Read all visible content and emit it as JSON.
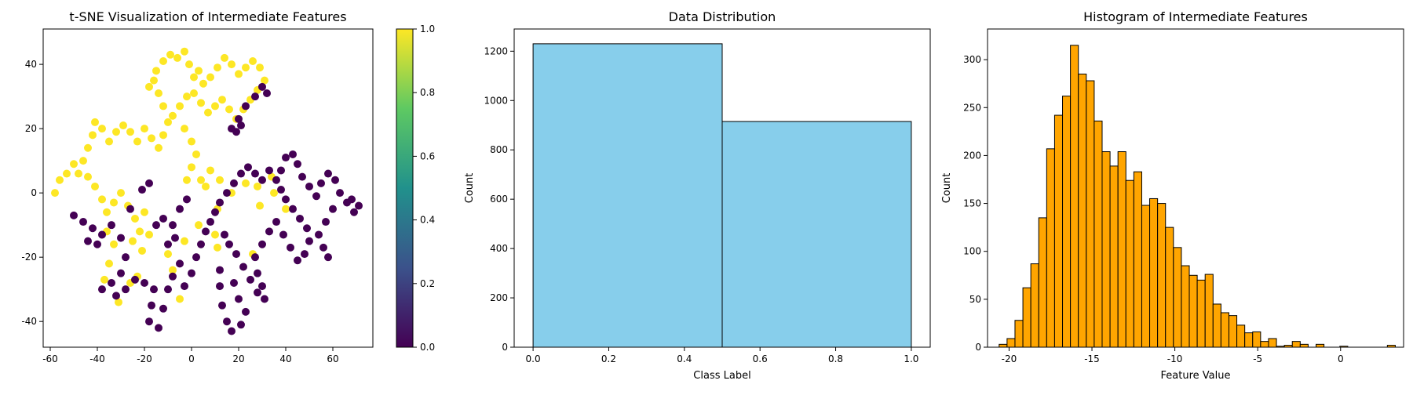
{
  "chart_data": [
    {
      "type": "scatter",
      "title": "t-SNE Visualization of Intermediate Features",
      "xlabel": "",
      "ylabel": "",
      "xlim": [
        -63,
        77
      ],
      "ylim": [
        -48,
        51
      ],
      "xticks": [
        "-60",
        "-40",
        "-20",
        "0",
        "20",
        "40",
        "60"
      ],
      "yticks": [
        "-40",
        "-20",
        "0",
        "20",
        "40"
      ],
      "colormap": "viridis",
      "colorbar": {
        "min": 0.0,
        "max": 1.0,
        "ticks": [
          "0.0",
          "0.2",
          "0.4",
          "0.6",
          "0.8",
          "1.0"
        ]
      },
      "class_colors": {
        "0": "#440154",
        "1": "#fde725"
      },
      "series": [
        {
          "label_value": 1,
          "points": [
            [
              -58,
              0
            ],
            [
              -56,
              4
            ],
            [
              -53,
              6
            ],
            [
              -50,
              9
            ],
            [
              -48,
              6
            ],
            [
              -46,
              10
            ],
            [
              -44,
              14
            ],
            [
              -42,
              18
            ],
            [
              -41,
              22
            ],
            [
              -38,
              20
            ],
            [
              -35,
              16
            ],
            [
              -32,
              19
            ],
            [
              -29,
              21
            ],
            [
              -26,
              19
            ],
            [
              -23,
              16
            ],
            [
              -20,
              20
            ],
            [
              -17,
              17
            ],
            [
              -14,
              14
            ],
            [
              -12,
              18
            ],
            [
              -10,
              22
            ],
            [
              -12,
              27
            ],
            [
              -14,
              31
            ],
            [
              -16,
              35
            ],
            [
              -18,
              33
            ],
            [
              -15,
              38
            ],
            [
              -12,
              41
            ],
            [
              -9,
              43
            ],
            [
              -6,
              42
            ],
            [
              -3,
              44
            ],
            [
              -1,
              40
            ],
            [
              1,
              36
            ],
            [
              3,
              38
            ],
            [
              5,
              34
            ],
            [
              8,
              36
            ],
            [
              11,
              39
            ],
            [
              14,
              42
            ],
            [
              17,
              40
            ],
            [
              20,
              37
            ],
            [
              23,
              39
            ],
            [
              26,
              41
            ],
            [
              29,
              39
            ],
            [
              31,
              35
            ],
            [
              28,
              32
            ],
            [
              25,
              29
            ],
            [
              22,
              26
            ],
            [
              19,
              23
            ],
            [
              16,
              26
            ],
            [
              13,
              29
            ],
            [
              10,
              27
            ],
            [
              7,
              25
            ],
            [
              4,
              28
            ],
            [
              1,
              31
            ],
            [
              -2,
              30
            ],
            [
              -5,
              27
            ],
            [
              -8,
              24
            ],
            [
              -3,
              20
            ],
            [
              0,
              16
            ],
            [
              2,
              12
            ],
            [
              0,
              8
            ],
            [
              -2,
              4
            ],
            [
              -44,
              5
            ],
            [
              -41,
              2
            ],
            [
              -38,
              -2
            ],
            [
              -36,
              -6
            ],
            [
              -33,
              -3
            ],
            [
              -30,
              0
            ],
            [
              -27,
              -4
            ],
            [
              -24,
              -8
            ],
            [
              -22,
              -12
            ],
            [
              -25,
              -15
            ],
            [
              -21,
              -18
            ],
            [
              -18,
              -13
            ],
            [
              -20,
              -6
            ],
            [
              -36,
              -12
            ],
            [
              -33,
              -16
            ],
            [
              -35,
              -22
            ],
            [
              -37,
              -27
            ],
            [
              -31,
              -34
            ],
            [
              -26,
              -28
            ],
            [
              -23,
              -26
            ],
            [
              -10,
              -19
            ],
            [
              -8,
              -24
            ],
            [
              -5,
              -33
            ],
            [
              10,
              -13
            ],
            [
              11,
              -17
            ],
            [
              26,
              -19
            ],
            [
              11,
              -5
            ],
            [
              3,
              -10
            ],
            [
              -3,
              -15
            ],
            [
              6,
              2
            ],
            [
              12,
              4
            ],
            [
              17,
              0
            ],
            [
              23,
              3
            ],
            [
              28,
              2
            ],
            [
              34,
              5
            ],
            [
              35,
              0
            ],
            [
              40,
              -5
            ],
            [
              29,
              -4
            ],
            [
              4,
              4
            ],
            [
              8,
              7
            ]
          ]
        },
        {
          "label_value": 0,
          "points": [
            [
              -50,
              -7
            ],
            [
              -46,
              -9
            ],
            [
              -42,
              -11
            ],
            [
              -38,
              -13
            ],
            [
              -34,
              -10
            ],
            [
              -30,
              -14
            ],
            [
              -28,
              -20
            ],
            [
              -30,
              -25
            ],
            [
              -34,
              -28
            ],
            [
              -38,
              -30
            ],
            [
              -32,
              -32
            ],
            [
              -28,
              -30
            ],
            [
              -24,
              -27
            ],
            [
              -20,
              -28
            ],
            [
              -16,
              -30
            ],
            [
              -17,
              -35
            ],
            [
              -18,
              -40
            ],
            [
              -14,
              -42
            ],
            [
              -12,
              -36
            ],
            [
              -10,
              -30
            ],
            [
              -8,
              -26
            ],
            [
              -5,
              -22
            ],
            [
              -3,
              -29
            ],
            [
              0,
              -25
            ],
            [
              2,
              -20
            ],
            [
              4,
              -16
            ],
            [
              6,
              -12
            ],
            [
              8,
              -9
            ],
            [
              10,
              -6
            ],
            [
              12,
              -3
            ],
            [
              15,
              0
            ],
            [
              18,
              3
            ],
            [
              21,
              6
            ],
            [
              24,
              8
            ],
            [
              27,
              6
            ],
            [
              30,
              4
            ],
            [
              33,
              7
            ],
            [
              36,
              4
            ],
            [
              38,
              1
            ],
            [
              40,
              -2
            ],
            [
              43,
              -5
            ],
            [
              46,
              -8
            ],
            [
              49,
              -11
            ],
            [
              50,
              -15
            ],
            [
              48,
              -19
            ],
            [
              45,
              -21
            ],
            [
              42,
              -17
            ],
            [
              39,
              -13
            ],
            [
              36,
              -9
            ],
            [
              33,
              -12
            ],
            [
              30,
              -16
            ],
            [
              27,
              -20
            ],
            [
              28,
              -25
            ],
            [
              30,
              -29
            ],
            [
              31,
              -33
            ],
            [
              28,
              -31
            ],
            [
              25,
              -27
            ],
            [
              22,
              -23
            ],
            [
              19,
              -19
            ],
            [
              16,
              -16
            ],
            [
              14,
              -13
            ],
            [
              12,
              -24
            ],
            [
              12,
              -29
            ],
            [
              13,
              -35
            ],
            [
              15,
              -40
            ],
            [
              17,
              -43
            ],
            [
              21,
              -41
            ],
            [
              23,
              -37
            ],
            [
              20,
              -33
            ],
            [
              18,
              -28
            ],
            [
              38,
              7
            ],
            [
              40,
              11
            ],
            [
              43,
              12
            ],
            [
              45,
              9
            ],
            [
              47,
              5
            ],
            [
              50,
              2
            ],
            [
              53,
              -1
            ],
            [
              55,
              3
            ],
            [
              58,
              6
            ],
            [
              61,
              4
            ],
            [
              63,
              0
            ],
            [
              66,
              -3
            ],
            [
              69,
              -6
            ],
            [
              71,
              -4
            ],
            [
              68,
              -2
            ],
            [
              60,
              -5
            ],
            [
              57,
              -9
            ],
            [
              54,
              -13
            ],
            [
              56,
              -17
            ],
            [
              58,
              -20
            ],
            [
              17,
              20
            ],
            [
              20,
              23
            ],
            [
              23,
              27
            ],
            [
              27,
              30
            ],
            [
              30,
              33
            ],
            [
              32,
              31
            ],
            [
              19,
              19
            ],
            [
              21,
              21
            ],
            [
              -15,
              -10
            ],
            [
              -12,
              -8
            ],
            [
              -8,
              -10
            ],
            [
              -5,
              -5
            ],
            [
              -2,
              -2
            ],
            [
              -21,
              1
            ],
            [
              -18,
              3
            ],
            [
              -26,
              -5
            ],
            [
              -44,
              -15
            ],
            [
              -40,
              -16
            ],
            [
              -10,
              -16
            ],
            [
              -7,
              -14
            ]
          ]
        }
      ]
    },
    {
      "type": "bar",
      "title": "Data Distribution",
      "xlabel": "Class Label",
      "ylabel": "Count",
      "xlim": [
        -0.05,
        1.05
      ],
      "ylim": [
        0,
        1290
      ],
      "xticks": [
        "0.0",
        "0.2",
        "0.4",
        "0.6",
        "0.8",
        "1.0"
      ],
      "yticks": [
        "0",
        "200",
        "400",
        "600",
        "800",
        "1000",
        "1200"
      ],
      "bar_color": "#87ceeb",
      "bins": [
        [
          0.0,
          0.5
        ],
        [
          0.5,
          1.0
        ]
      ],
      "values": [
        1230,
        915
      ]
    },
    {
      "type": "bar",
      "title": "Histogram of Intermediate Features",
      "xlabel": "Feature Value",
      "ylabel": "Count",
      "xlim": [
        -21.3,
        3.8
      ],
      "ylim": [
        0,
        332
      ],
      "xticks": [
        "-20",
        "-15",
        "-10",
        "-5",
        "0"
      ],
      "yticks": [
        "0",
        "50",
        "100",
        "150",
        "200",
        "250",
        "300"
      ],
      "bar_color": "#ffa500",
      "bin_start": -20.6,
      "bin_width": 0.478,
      "values": [
        3,
        9,
        28,
        62,
        87,
        135,
        207,
        242,
        262,
        315,
        285,
        278,
        236,
        204,
        189,
        204,
        174,
        183,
        148,
        155,
        150,
        125,
        104,
        85,
        75,
        70,
        76,
        45,
        36,
        33,
        23,
        15,
        16,
        6,
        9,
        1,
        2,
        6,
        3,
        0,
        3,
        0,
        0,
        1,
        0,
        0,
        0,
        0,
        0,
        2
      ]
    }
  ]
}
